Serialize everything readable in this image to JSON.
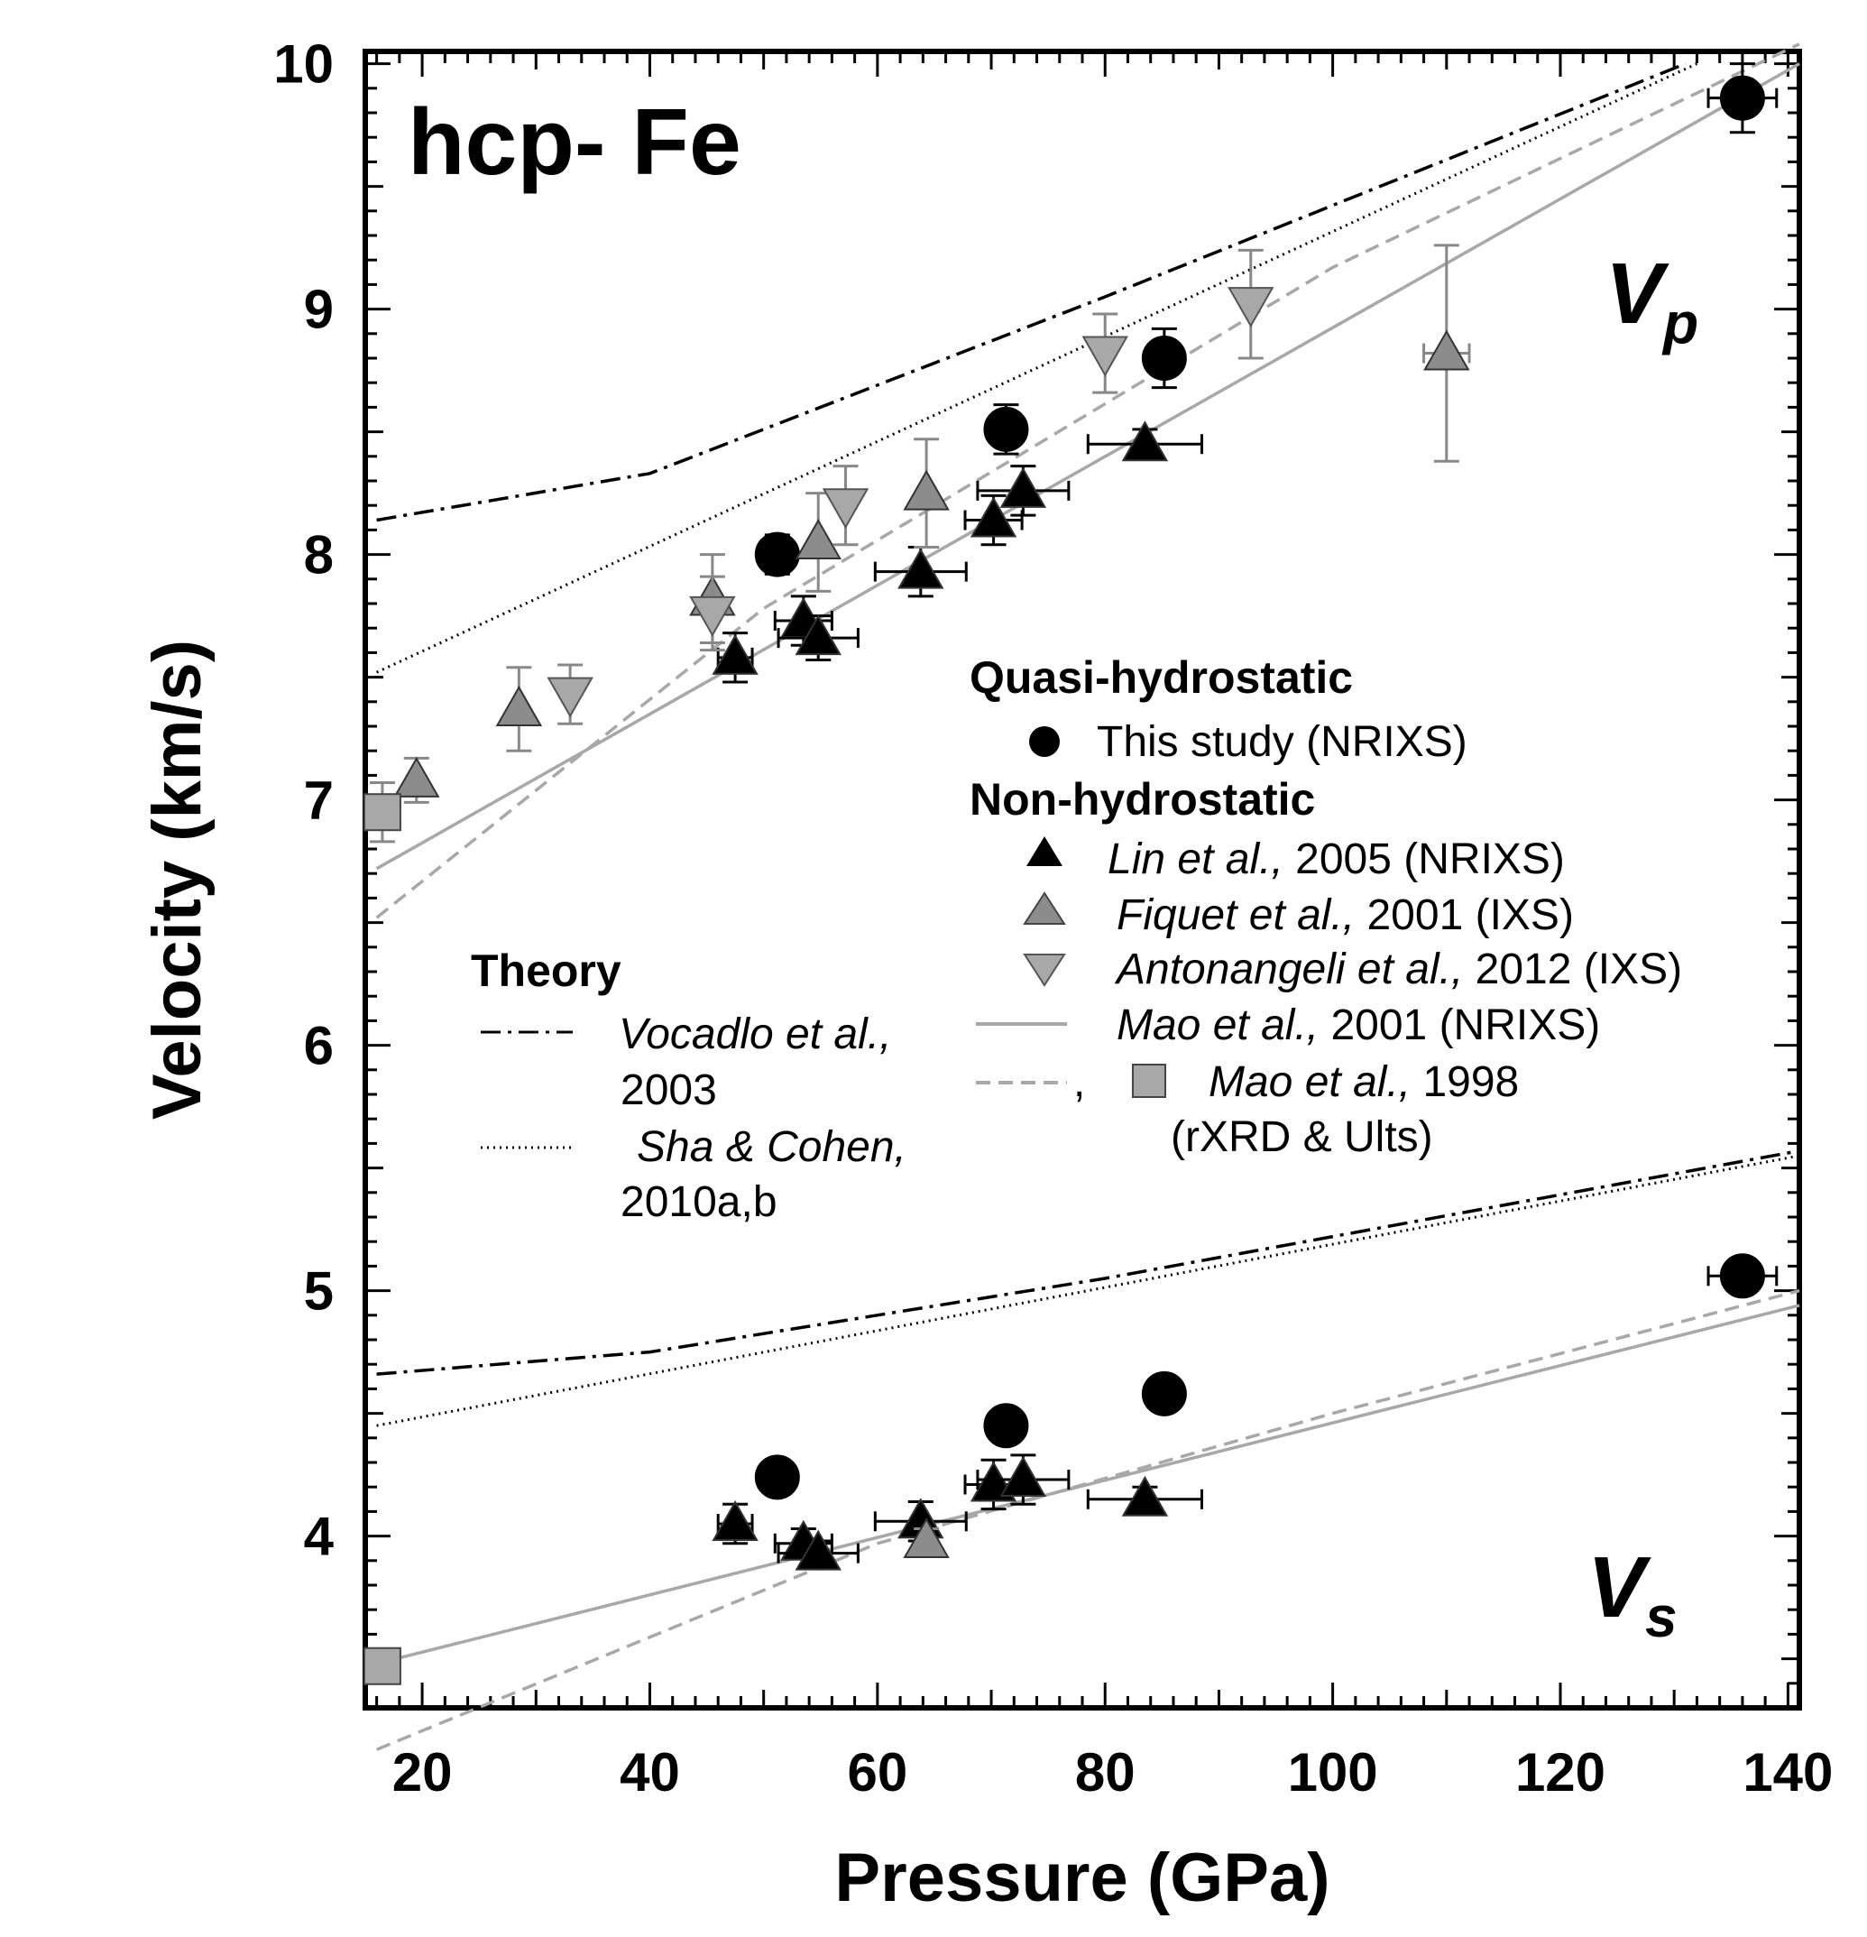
{
  "chart_data": {
    "type": "scatter",
    "title": "hcp- Fe",
    "xlabel": "Pressure (GPa)",
    "ylabel": "Velocity (km/s)",
    "xlim": [
      15,
      141
    ],
    "ylim": [
      3.3,
      10.05
    ],
    "xticks": [
      20,
      40,
      60,
      80,
      100,
      120,
      140
    ],
    "yticks": [
      4,
      5,
      6,
      7,
      8,
      9,
      10
    ],
    "panel_labels": {
      "vp": "V",
      "vp_sub": "p",
      "vs": "V",
      "vs_sub": "s"
    },
    "legend": {
      "quasi_heading": "Quasi-hydrostatic",
      "this_study": "This study (NRIXS)",
      "non_heading": "Non-hydrostatic",
      "lin_author": "Lin et al.,",
      "lin_rest": " 2005 (NRIXS)",
      "fiquet_author": "Fiquet et al.,",
      "fiquet_rest": " 2001 (IXS)",
      "anto_author": "Antonangeli et al.,",
      "anto_rest": " 2012 (IXS)",
      "mao01_author": "Mao et al.,",
      "mao01_rest": " 2001 (NRIXS)",
      "mao98_comma": ",",
      "mao98_author": "Mao et al.,",
      "mao98_rest": " 1998",
      "mao98_line2": "(rXRD & Ults)",
      "theory_heading": "Theory",
      "vocadlo_author": "Vocadlo et al.,",
      "vocadlo_year": "2003",
      "sha_author": "Sha & Cohen,",
      "sha_year": "2010a,b"
    },
    "series": [
      {
        "name": "This study (NRIXS)",
        "marker": "circle",
        "color": "#000000",
        "vp": [
          [
            51.2,
            8.0,
            1.0,
            0.08
          ],
          [
            71.3,
            8.51,
            1.0,
            0.1
          ],
          [
            85.2,
            8.8,
            1.5,
            0.12
          ],
          [
            136.0,
            9.86,
            3.0,
            0.14
          ]
        ],
        "vs": [
          [
            51.2,
            4.24,
            0.8,
            0.04
          ],
          [
            71.3,
            4.45,
            1.0,
            0.06
          ],
          [
            85.2,
            4.58,
            1.5,
            0.05
          ],
          [
            136.0,
            5.06,
            3.0,
            0.05
          ]
        ]
      },
      {
        "name": "Lin et al., 2005 (NRIXS)",
        "marker": "triangle-up",
        "color": "#000000",
        "vp": [
          [
            47.5,
            7.58,
            1.5,
            0.1
          ],
          [
            53.5,
            7.73,
            2.5,
            0.1
          ],
          [
            54.8,
            7.66,
            3.5,
            0.09
          ],
          [
            63.8,
            7.93,
            4.0,
            0.1
          ],
          [
            70.2,
            8.14,
            2.5,
            0.1
          ],
          [
            72.8,
            8.26,
            4.0,
            0.1
          ],
          [
            83.5,
            8.45,
            5.0,
            0.06
          ]
        ],
        "vs": [
          [
            47.5,
            4.05,
            1.5,
            0.08
          ],
          [
            53.5,
            3.97,
            2.5,
            0.06
          ],
          [
            54.8,
            3.93,
            3.5,
            0.05
          ],
          [
            63.8,
            4.06,
            4.0,
            0.08
          ],
          [
            70.2,
            4.21,
            2.5,
            0.1
          ],
          [
            72.8,
            4.23,
            4.0,
            0.1
          ],
          [
            83.5,
            4.15,
            5.0,
            0.05
          ]
        ]
      },
      {
        "name": "Fiquet et al., 2001 (IXS)",
        "marker": "triangle-up",
        "color": "#8c8c8c",
        "vp": [
          [
            19.5,
            7.08,
            0,
            0.09
          ],
          [
            28.5,
            7.37,
            0,
            0.17
          ],
          [
            45.5,
            7.82,
            0,
            0.18
          ],
          [
            54.8,
            8.05,
            0,
            0.2
          ],
          [
            64.3,
            8.25,
            0,
            0.22
          ],
          [
            110.0,
            8.82,
            2.0,
            0.44
          ]
        ],
        "vs": [
          [
            64.3,
            3.98,
            0,
            0.05
          ]
        ]
      },
      {
        "name": "Antonangeli et al., 2012 (IXS)",
        "marker": "triangle-down",
        "color": "#a8a8a8",
        "vp": [
          [
            33.0,
            7.43,
            0,
            0.12
          ],
          [
            45.5,
            7.76,
            0,
            0.15
          ],
          [
            57.2,
            8.2,
            0,
            0.16
          ],
          [
            80.0,
            8.82,
            0,
            0.16
          ],
          [
            92.8,
            9.02,
            0,
            0.22
          ]
        ],
        "vs": []
      },
      {
        "name": "Mao et al., 1998 (rXRD & Ults)",
        "marker": "square",
        "color": "#a8a8a8",
        "vp": [
          [
            16.5,
            6.95,
            0,
            0.12
          ]
        ],
        "vs": [
          [
            16.5,
            3.47,
            0,
            0
          ]
        ]
      }
    ],
    "lines": [
      {
        "name": "Mao et al., 2001 (NRIXS)",
        "style": "solid",
        "color": "#a8a8a8",
        "vp": [
          [
            16,
            6.72
          ],
          [
            141,
            10.0
          ]
        ],
        "vs": [
          [
            16,
            3.48
          ],
          [
            141,
            4.94
          ]
        ]
      },
      {
        "name": "Mao et al., 1998",
        "style": "dashed",
        "color": "#a8a8a8",
        "vp": [
          [
            16,
            6.52
          ],
          [
            50,
            7.78
          ],
          [
            100,
            9.17
          ],
          [
            141,
            10.08
          ]
        ],
        "vs": [
          [
            16,
            3.13
          ],
          [
            60,
            3.97
          ],
          [
            100,
            4.5
          ],
          [
            141,
            5.0
          ]
        ]
      },
      {
        "name": "Vocadlo et al., 2003",
        "style": "dashdot",
        "color": "#000000",
        "vp": [
          [
            16,
            8.14
          ],
          [
            40,
            8.33
          ],
          [
            80,
            9.05
          ],
          [
            131,
            10.0
          ]
        ],
        "vs": [
          [
            16,
            4.66
          ],
          [
            40,
            4.75
          ],
          [
            80,
            5.05
          ],
          [
            141,
            5.57
          ]
        ]
      },
      {
        "name": "Sha & Cohen, 2010a,b",
        "style": "dotted",
        "color": "#000000",
        "vp": [
          [
            16,
            7.52
          ],
          [
            132,
            10.0
          ]
        ],
        "vs": [
          [
            16,
            4.45
          ],
          [
            141,
            5.55
          ]
        ]
      }
    ]
  }
}
